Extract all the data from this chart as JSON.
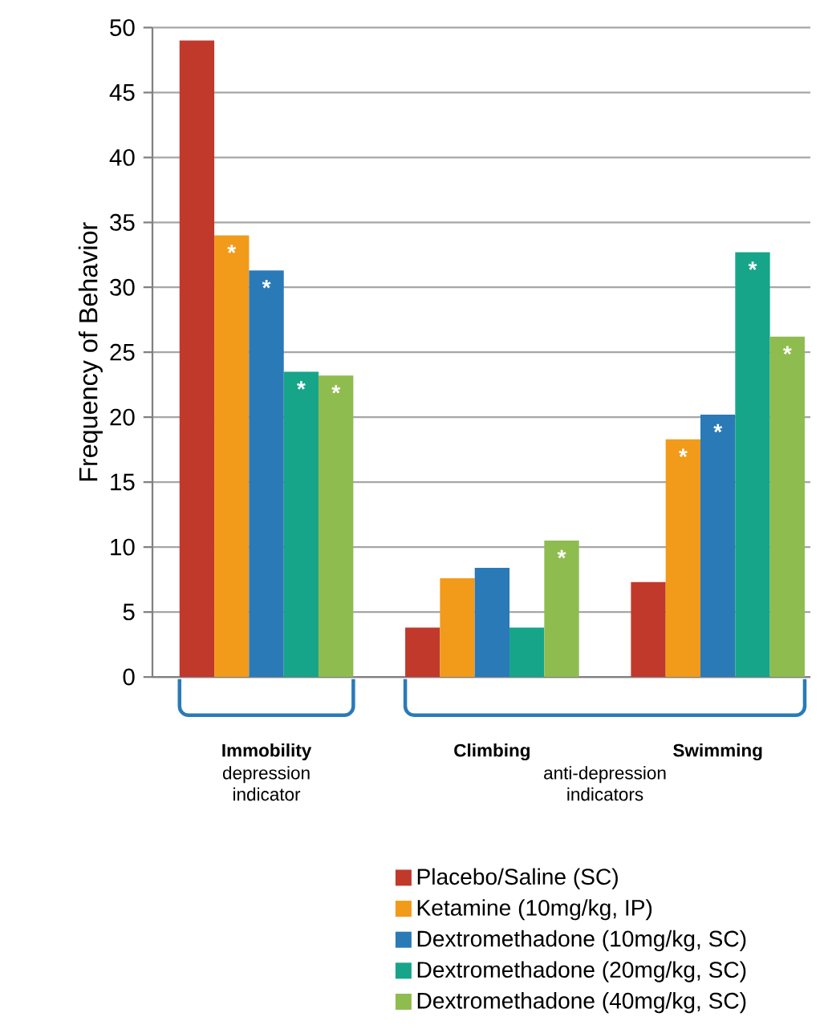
{
  "chart_data": {
    "type": "bar",
    "ylabel": "Frequency of Behavior",
    "categories": [
      "Immobility",
      "Climbing",
      "Swimming"
    ],
    "series": [
      {
        "name": "Placebo/Saline (SC)",
        "color": "#c0392b",
        "values": [
          49.0,
          3.8,
          7.3
        ]
      },
      {
        "name": "Ketamine (10mg/kg, IP)",
        "color": "#f29a1a",
        "values": [
          34.0,
          7.6,
          18.3
        ],
        "value_labels": [
          "*",
          null,
          "*"
        ]
      },
      {
        "name": "Dextromethadone (10mg/kg, SC)",
        "color": "#2a7ab8",
        "values": [
          31.3,
          8.4,
          20.2
        ],
        "value_labels": [
          "*",
          null,
          "*"
        ]
      },
      {
        "name": "Dextromethadone (20mg/kg, SC)",
        "color": "#17a589",
        "values": [
          23.5,
          3.8,
          32.7
        ],
        "value_labels": [
          "*",
          null,
          "*"
        ]
      },
      {
        "name": "Dextromethadone (40mg/kg, SC)",
        "color": "#8fbc4f",
        "values": [
          23.2,
          10.5,
          26.2
        ],
        "value_labels": [
          "*",
          "*",
          "*"
        ]
      }
    ],
    "annotations": [
      "depression indicator",
      "anti-depression indicators"
    ],
    "ylim": [
      0,
      50
    ],
    "yticks": [
      0,
      5,
      10,
      15,
      20,
      25,
      30,
      35,
      40,
      45,
      50
    ],
    "grid": "y",
    "legend": "bottom"
  }
}
